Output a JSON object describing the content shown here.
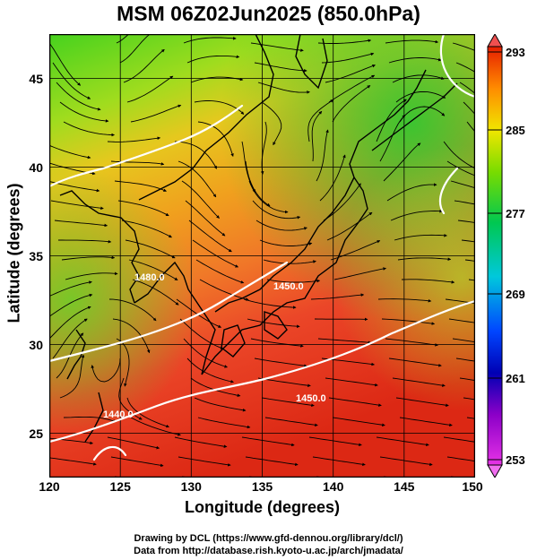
{
  "title": "MSM 06Z02Jun2025 (850.0hPa)",
  "map": {
    "type": "temperature-and-wind-streamline-map",
    "xlabel": "Longitude (degrees)",
    "ylabel": "Latitude  (degrees)",
    "xlim": [
      120,
      150
    ],
    "ylim": [
      22.5,
      47.5
    ],
    "xticks": [
      "120",
      "125",
      "130",
      "135",
      "140",
      "145",
      "150"
    ],
    "yticks": [
      "25",
      "30",
      "35",
      "40",
      "45"
    ],
    "grid": true,
    "contour_labels": [
      "1440.0",
      "1450.0",
      "1480.0",
      "1450.0"
    ],
    "colorbar": {
      "min": 253,
      "max": 293,
      "ticks": [
        "293",
        "285",
        "277",
        "269",
        "261",
        "253"
      ],
      "colors": [
        "#c800c8",
        "#0000c8",
        "#0064ff",
        "#00c8c8",
        "#00c800",
        "#64dc00",
        "#f0f000",
        "#ff9600",
        "#ff3200",
        "#e60000"
      ]
    }
  },
  "footer": {
    "line1": "Drawing by DCL (https://www.gfd-dennou.org/library/dcl/)",
    "line2": "Data from http://database.rish.kyoto-u.ac.jp/arch/jmadata/"
  }
}
